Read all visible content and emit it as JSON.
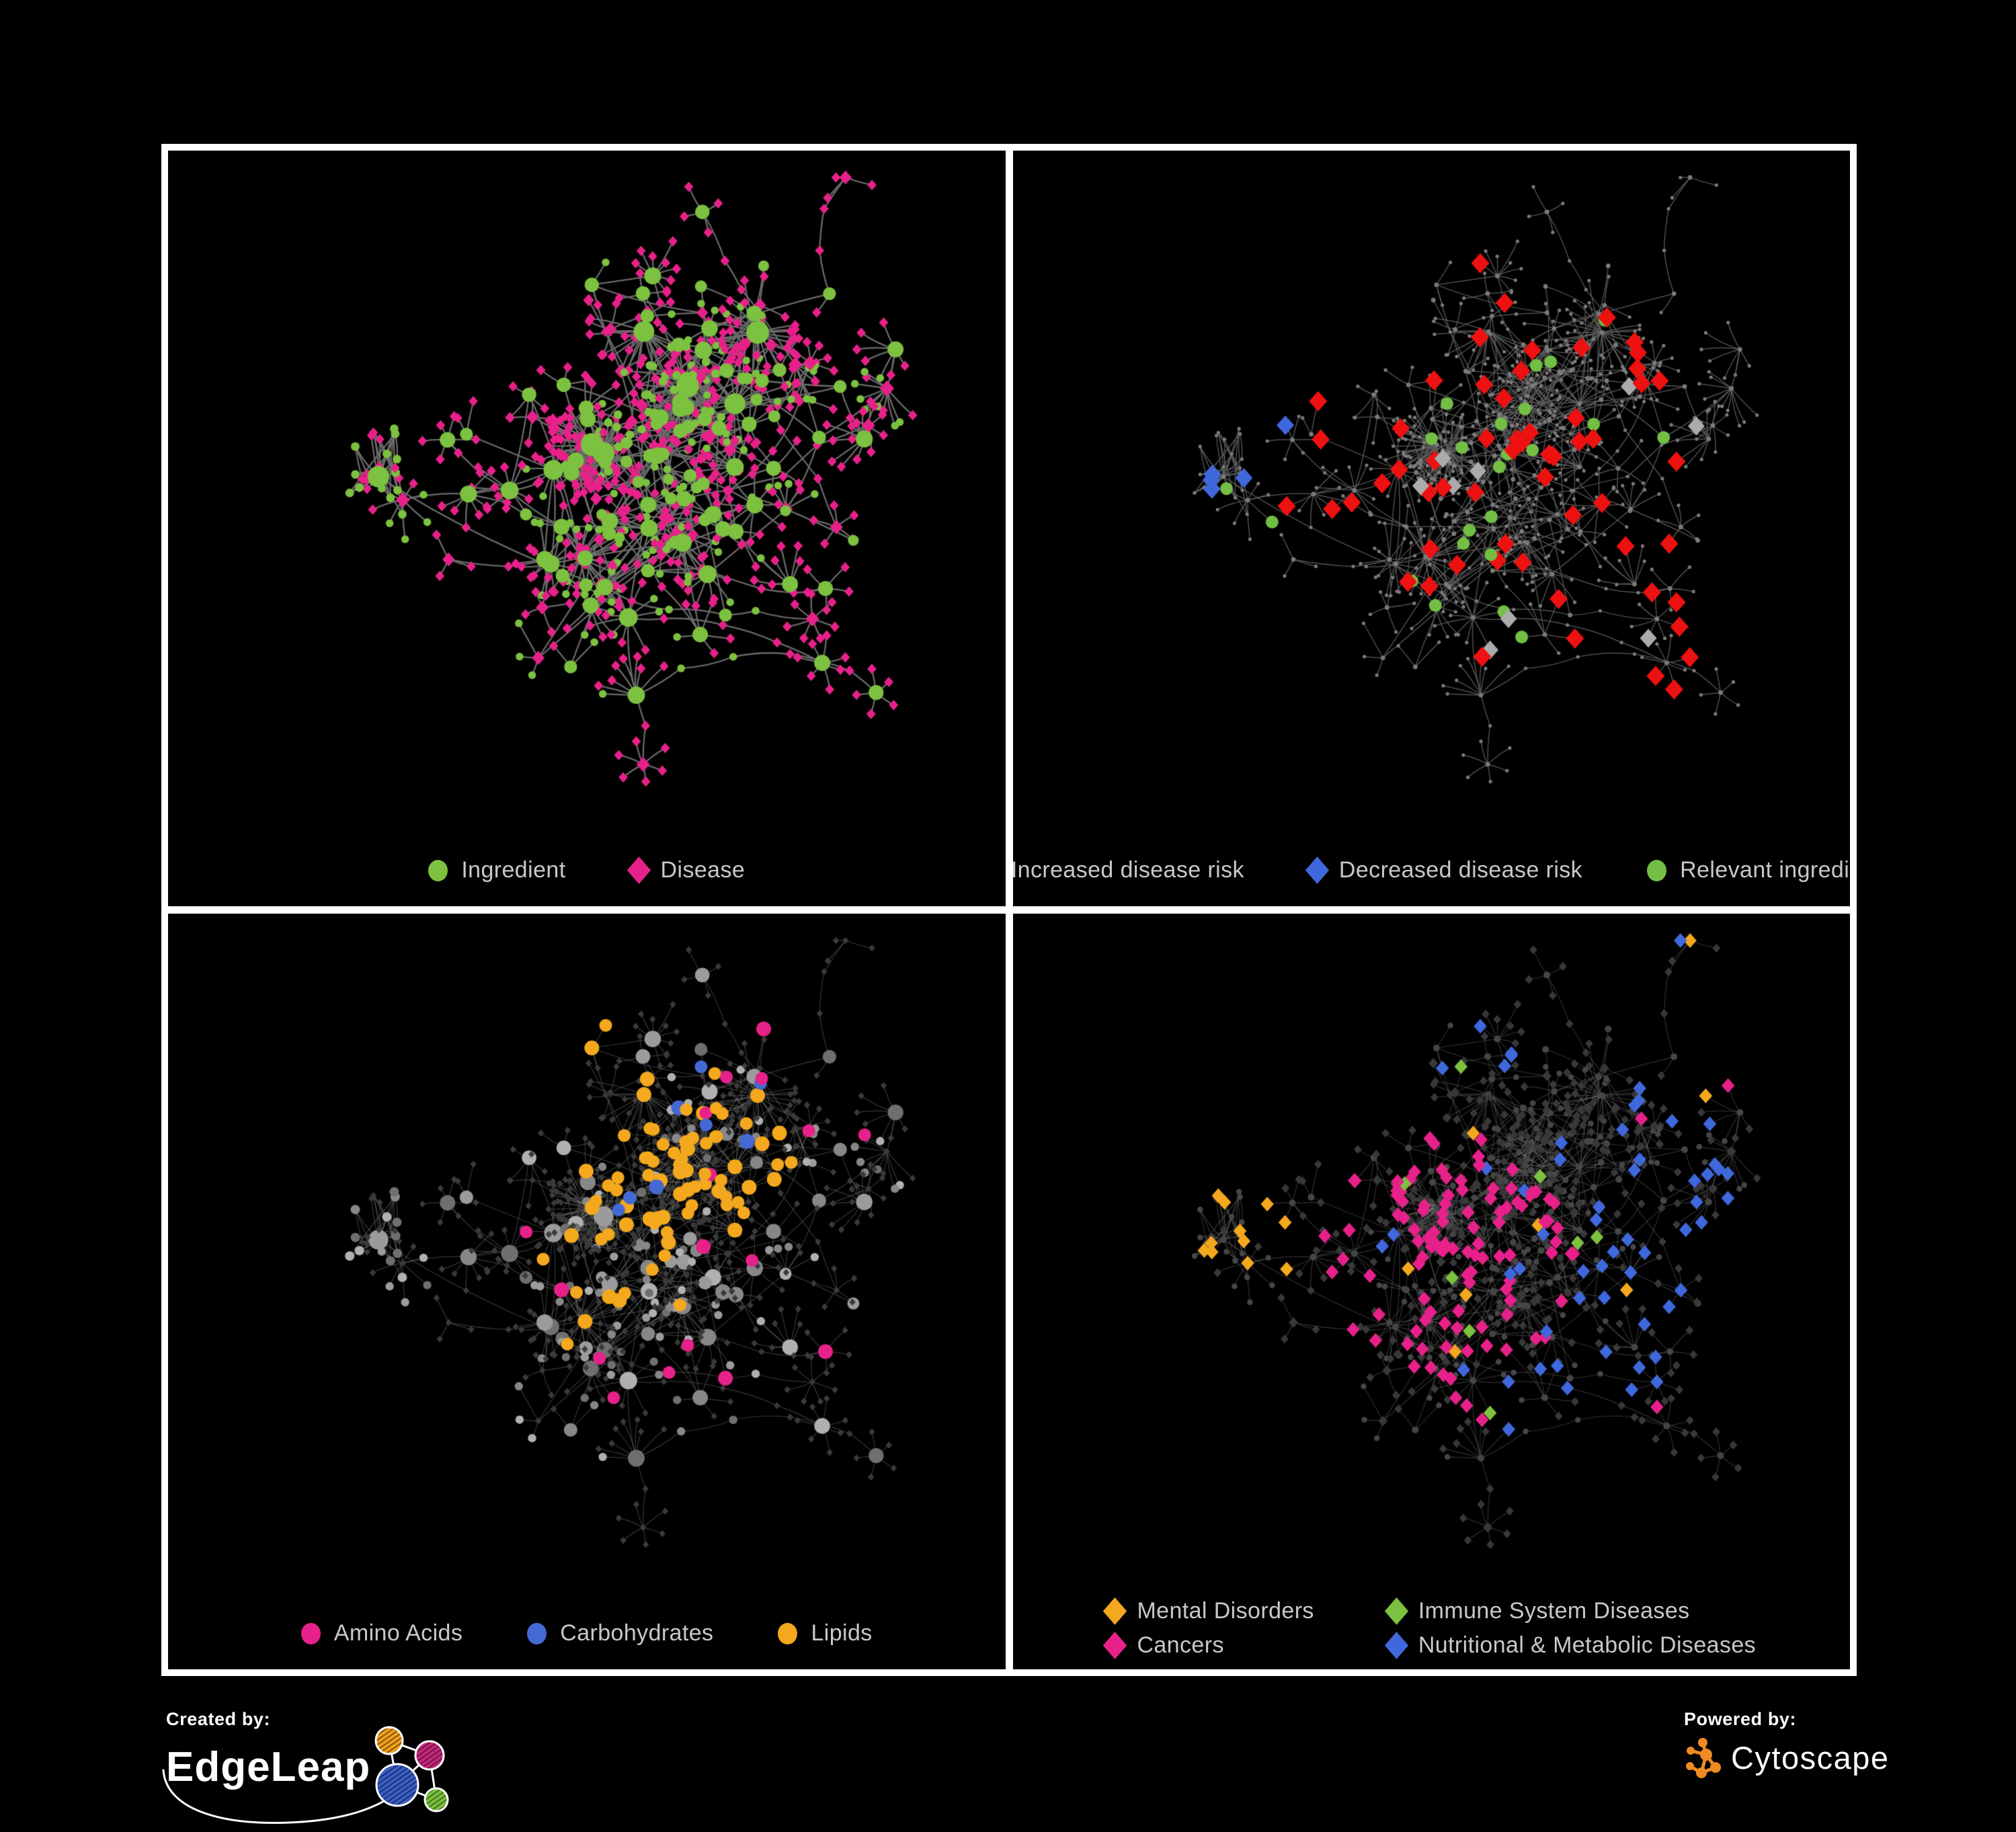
{
  "branding": {
    "created_by_label": "Created by:",
    "created_by_name": "EdgeLeap",
    "powered_by_label": "Powered by:",
    "powered_by_name": "Cytoscape"
  },
  "style": {
    "background": "#000000",
    "frame_color": "#ffffff",
    "panel_background": "#000000",
    "legend_text_color": "#c8c8c8",
    "cytoscape_orange": "#EE8B22",
    "edgeleap_logo_colors": [
      "#F2A11C",
      "#C32779",
      "#3A5FC4",
      "#7CC13F"
    ]
  },
  "chart_data": [
    {
      "type": "network",
      "panel": "top-left",
      "legend": [
        {
          "label": "Ingredient",
          "shape": "circle",
          "color": "#7CC13F"
        },
        {
          "label": "Disease",
          "shape": "diamond",
          "color": "#E7218A"
        }
      ],
      "edge_color": "#6A6A6A"
    },
    {
      "type": "network",
      "panel": "top-right",
      "legend": [
        {
          "label": "Increased disease risk",
          "shape": "diamond",
          "color": "#EE1111"
        },
        {
          "label": "Decreased disease risk",
          "shape": "diamond",
          "color": "#3F68DC"
        },
        {
          "label": "Relevant ingredient",
          "shape": "circle",
          "color": "#72BF44"
        }
      ],
      "edge_color": "#5D5D5D",
      "base_node_color": "#7B7B7B",
      "unlabeled_highlight_color": "#ABABAB"
    },
    {
      "type": "network",
      "panel": "bottom-left",
      "legend": [
        {
          "label": "Amino Acids",
          "shape": "circle",
          "color": "#E7218A"
        },
        {
          "label": "Carbohydrates",
          "shape": "circle",
          "color": "#4569D4"
        },
        {
          "label": "Lipids",
          "shape": "circle",
          "color": "#F4A81D"
        }
      ],
      "edge_color": "rgba(168,168,168,0.33)",
      "base_node_color": "#8F8F8F",
      "leaf_node_color": "#3A3A3A"
    },
    {
      "type": "network",
      "panel": "bottom-right",
      "legend": [
        {
          "label": "Mental Disorders",
          "shape": "diamond",
          "color": "#F4A81D"
        },
        {
          "label": "Immune System Diseases",
          "shape": "diamond",
          "color": "#7CC13F"
        },
        {
          "label": "Cancers",
          "shape": "diamond",
          "color": "#E7218A"
        },
        {
          "label": "Nutritional & Metabolic Diseases",
          "shape": "diamond",
          "color": "#3F68DC"
        }
      ],
      "edge_color": "rgba(160,160,160,0.30)",
      "base_node_color": "#383838"
    }
  ]
}
